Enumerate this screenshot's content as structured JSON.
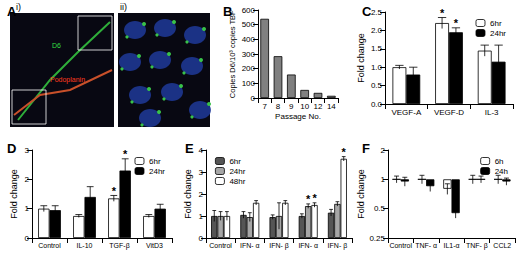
{
  "image_panel": {
    "title": "A",
    "subpanels": [
      {
        "label": "i)",
        "annotations": [
          {
            "text": "D6",
            "color": "#33dd44"
          },
          {
            "text": "Podoplanin",
            "color": "#ff3b1f"
          }
        ]
      },
      {
        "label": "ii)"
      }
    ]
  },
  "chart_data": [
    {
      "title": "B",
      "type": "bar",
      "categories": [
        "7",
        "8",
        "9",
        "10",
        "12",
        "14"
      ],
      "values": [
        540,
        285,
        160,
        55,
        35,
        15
      ],
      "color": "#808080",
      "x_label": "Passage No.",
      "y_label": "Copies D6/10³ copies TBP",
      "ylim": [
        0,
        600
      ],
      "yticks": [
        0,
        100,
        200,
        300,
        400,
        500,
        600
      ],
      "grid": false
    },
    {
      "title": "C",
      "type": "bar",
      "categories": [
        "VEGF-A",
        "VEGF-D",
        "IL-3"
      ],
      "series": [
        {
          "name": "6hr",
          "color": "#ffffff",
          "values": [
            1.0,
            2.2,
            1.45
          ],
          "errors": [
            0.05,
            0.15,
            0.15
          ]
        },
        {
          "name": "24hr",
          "color": "#000000",
          "values": [
            0.8,
            1.95,
            1.15
          ],
          "errors": [
            0.2,
            0.12,
            0.45
          ]
        }
      ],
      "annotations": [
        {
          "series": "6hr",
          "category": 1,
          "text": "*"
        },
        {
          "series": "24hr",
          "category": 1,
          "text": "*"
        }
      ],
      "y_label": "Fold change",
      "ylim": [
        0,
        2.5
      ],
      "yticks": [
        {
          "value": 0,
          "label": "0.0"
        },
        0.5,
        {
          "value": 1,
          "label": "1.0"
        },
        1.5,
        {
          "value": 2,
          "label": "2.0"
        },
        2.5
      ],
      "legend": "top-right",
      "grid": false
    },
    {
      "title": "D",
      "type": "bar",
      "categories": [
        "Control",
        "IL-10",
        "TGF-β",
        "VitD3"
      ],
      "series": [
        {
          "name": "6hr",
          "color": "#ffffff",
          "values": [
            1.0,
            0.75,
            1.35,
            0.75
          ],
          "errors": [
            0.1,
            0.05,
            0.1,
            0.05
          ]
        },
        {
          "name": "24hr",
          "color": "#000000",
          "values": [
            0.95,
            1.4,
            2.3,
            1.0
          ],
          "errors": [
            0.15,
            0.35,
            0.4,
            0.15
          ]
        }
      ],
      "annotations": [
        {
          "series": "6hr",
          "category": 2,
          "text": "*"
        },
        {
          "series": "24hr",
          "category": 2,
          "text": "*"
        }
      ],
      "y_label": "Fold change",
      "ylim": [
        0,
        3
      ],
      "yticks": [
        0,
        1,
        2,
        3
      ],
      "legend": "top-right",
      "grid": false
    },
    {
      "title": "E",
      "type": "bar",
      "categories": [
        "Control",
        "IFN- α",
        "IFN- β",
        "IFN- α",
        "IFN- β"
      ],
      "series": [
        {
          "name": "6hr",
          "color": "#555555",
          "values": [
            1.0,
            1.05,
            0.95,
            1.0,
            1.15
          ],
          "errors": [
            0.25,
            0.15,
            0.1,
            0.1,
            0.15
          ]
        },
        {
          "name": "24hr",
          "color": "#a6a6a6",
          "values": [
            1.0,
            0.95,
            1.0,
            1.45,
            1.55
          ],
          "errors": [
            0.2,
            0.2,
            0.6,
            0.1,
            0.1
          ]
        },
        {
          "name": "48hr",
          "color": "#ffffff",
          "values": [
            1.0,
            1.6,
            1.6,
            1.5,
            3.6
          ],
          "errors": [
            0.2,
            0.1,
            0.1,
            0.1,
            0.1
          ]
        }
      ],
      "annotations": [
        {
          "series": "24hr",
          "category": 3,
          "text": "*"
        },
        {
          "series": "48hr",
          "category": 3,
          "text": "*"
        },
        {
          "series": "48hr",
          "category": 4,
          "text": "*"
        }
      ],
      "y_label": "Fold change",
      "ylim": [
        0,
        4
      ],
      "yticks": [
        0,
        1,
        2,
        3,
        4
      ],
      "legend": "top-left",
      "grid": false
    },
    {
      "title": "F",
      "type": "bar",
      "categories": [
        "Control",
        "TNF- α",
        "IL1-α",
        "TNF- β",
        "CCL2"
      ],
      "series": [
        {
          "name": "6h",
          "color": "#ffffff",
          "values": [
            1.0,
            1.0,
            0.8,
            1.0,
            1.0
          ],
          "errors": [
            0.08,
            0.1,
            0.1,
            0.1,
            0.1
          ]
        },
        {
          "name": "24h",
          "color": "#000000",
          "values": [
            0.95,
            0.85,
            0.45,
            1.0,
            0.95
          ],
          "errors": [
            0.1,
            0.1,
            0.05,
            0.08,
            0.08
          ]
        }
      ],
      "annotations": [
        {
          "series": "24h",
          "category": 2,
          "text": "*"
        }
      ],
      "y_label": "Fold change",
      "ylim": [
        0.25,
        2
      ],
      "yticks": [
        0.25,
        0.5,
        1,
        2
      ],
      "log": "y",
      "legend": "top-right",
      "grid": false
    }
  ]
}
